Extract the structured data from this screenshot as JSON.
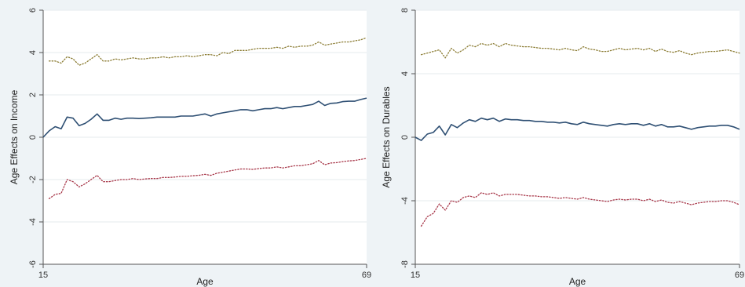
{
  "chart_data": [
    {
      "type": "line",
      "ylabel": "Age Effects on Income",
      "xlabel": "Age",
      "xlim": [
        15,
        69
      ],
      "ylim": [
        -6,
        6
      ],
      "x_ticks": [
        15,
        69
      ],
      "y_ticks": [
        -6,
        -4,
        -2,
        0,
        2,
        4,
        6
      ],
      "grid": true,
      "x": [
        15,
        16,
        17,
        18,
        19,
        20,
        21,
        22,
        23,
        24,
        25,
        26,
        27,
        28,
        29,
        30,
        31,
        32,
        33,
        34,
        35,
        36,
        37,
        38,
        39,
        40,
        41,
        42,
        43,
        44,
        45,
        46,
        47,
        48,
        49,
        50,
        51,
        52,
        53,
        54,
        55,
        56,
        57,
        58,
        59,
        60,
        61,
        62,
        63,
        64,
        65,
        66,
        67,
        68,
        69
      ],
      "series": [
        {
          "style": "dotted",
          "color": "#8c7d35",
          "values": [
            null,
            3.6,
            3.6,
            3.5,
            3.8,
            3.7,
            3.4,
            3.5,
            3.7,
            3.9,
            3.6,
            3.6,
            3.7,
            3.65,
            3.7,
            3.75,
            3.7,
            3.7,
            3.75,
            3.75,
            3.8,
            3.75,
            3.8,
            3.8,
            3.85,
            3.8,
            3.85,
            3.9,
            3.9,
            3.85,
            4.0,
            3.95,
            4.1,
            4.1,
            4.1,
            4.15,
            4.2,
            4.2,
            4.2,
            4.25,
            4.2,
            4.3,
            4.25,
            4.3,
            4.3,
            4.35,
            4.5,
            4.35,
            4.4,
            4.45,
            4.5,
            4.5,
            4.55,
            4.6,
            4.7
          ]
        },
        {
          "style": "solid",
          "color": "#2e4f73",
          "values": [
            0.0,
            0.3,
            0.5,
            0.4,
            0.95,
            0.9,
            0.55,
            0.65,
            0.85,
            1.1,
            0.8,
            0.8,
            0.9,
            0.85,
            0.9,
            0.9,
            0.88,
            0.9,
            0.92,
            0.95,
            0.95,
            0.95,
            0.95,
            1.0,
            1.0,
            1.0,
            1.05,
            1.1,
            1.0,
            1.1,
            1.15,
            1.2,
            1.25,
            1.3,
            1.3,
            1.25,
            1.3,
            1.35,
            1.35,
            1.4,
            1.35,
            1.4,
            1.45,
            1.45,
            1.5,
            1.55,
            1.7,
            1.5,
            1.6,
            1.62,
            1.68,
            1.7,
            1.7,
            1.78,
            1.85
          ]
        },
        {
          "style": "dotted",
          "color": "#a8384a",
          "values": [
            null,
            -2.9,
            -2.7,
            -2.65,
            -2.0,
            -2.1,
            -2.35,
            -2.2,
            -2.0,
            -1.8,
            -2.1,
            -2.1,
            -2.05,
            -2.0,
            -2.0,
            -1.95,
            -2.0,
            -1.97,
            -1.95,
            -1.95,
            -1.9,
            -1.9,
            -1.88,
            -1.85,
            -1.85,
            -1.82,
            -1.8,
            -1.75,
            -1.8,
            -1.7,
            -1.65,
            -1.6,
            -1.55,
            -1.5,
            -1.5,
            -1.52,
            -1.48,
            -1.45,
            -1.45,
            -1.4,
            -1.45,
            -1.4,
            -1.35,
            -1.35,
            -1.3,
            -1.25,
            -1.1,
            -1.3,
            -1.22,
            -1.2,
            -1.15,
            -1.12,
            -1.1,
            -1.05,
            -1.0
          ]
        }
      ]
    },
    {
      "type": "line",
      "ylabel": "Age Effects on Durables",
      "xlabel": "Age",
      "xlim": [
        15,
        69
      ],
      "ylim": [
        -8,
        8
      ],
      "x_ticks": [
        15,
        69
      ],
      "y_ticks": [
        -8,
        -4,
        0,
        4,
        8
      ],
      "grid": true,
      "x": [
        15,
        16,
        17,
        18,
        19,
        20,
        21,
        22,
        23,
        24,
        25,
        26,
        27,
        28,
        29,
        30,
        31,
        32,
        33,
        34,
        35,
        36,
        37,
        38,
        39,
        40,
        41,
        42,
        43,
        44,
        45,
        46,
        47,
        48,
        49,
        50,
        51,
        52,
        53,
        54,
        55,
        56,
        57,
        58,
        59,
        60,
        61,
        62,
        63,
        64,
        65,
        66,
        67,
        68,
        69
      ],
      "series": [
        {
          "style": "dotted",
          "color": "#8c7d35",
          "values": [
            null,
            5.2,
            5.3,
            5.4,
            5.5,
            5.0,
            5.6,
            5.3,
            5.5,
            5.8,
            5.7,
            5.9,
            5.8,
            5.9,
            5.7,
            5.9,
            5.8,
            5.75,
            5.7,
            5.7,
            5.65,
            5.6,
            5.6,
            5.55,
            5.5,
            5.6,
            5.5,
            5.45,
            5.7,
            5.55,
            5.5,
            5.4,
            5.4,
            5.5,
            5.6,
            5.5,
            5.55,
            5.6,
            5.5,
            5.6,
            5.4,
            5.55,
            5.4,
            5.35,
            5.45,
            5.3,
            5.2,
            5.3,
            5.35,
            5.4,
            5.4,
            5.45,
            5.5,
            5.4,
            5.3
          ]
        },
        {
          "style": "solid",
          "color": "#2e4f73",
          "values": [
            0.0,
            -0.2,
            0.2,
            0.3,
            0.7,
            0.15,
            0.8,
            0.6,
            0.9,
            1.1,
            1.0,
            1.2,
            1.1,
            1.2,
            1.0,
            1.15,
            1.1,
            1.1,
            1.05,
            1.05,
            1.0,
            1.0,
            0.95,
            0.95,
            0.9,
            0.95,
            0.85,
            0.8,
            0.95,
            0.85,
            0.8,
            0.75,
            0.7,
            0.8,
            0.85,
            0.8,
            0.85,
            0.85,
            0.75,
            0.85,
            0.7,
            0.8,
            0.65,
            0.65,
            0.7,
            0.6,
            0.5,
            0.6,
            0.65,
            0.7,
            0.7,
            0.75,
            0.75,
            0.65,
            0.5
          ]
        },
        {
          "style": "dotted",
          "color": "#a8384a",
          "values": [
            null,
            -5.6,
            -5.0,
            -4.8,
            -4.2,
            -4.6,
            -4.0,
            -4.1,
            -3.8,
            -3.7,
            -3.8,
            -3.5,
            -3.6,
            -3.5,
            -3.7,
            -3.6,
            -3.6,
            -3.6,
            -3.65,
            -3.7,
            -3.7,
            -3.75,
            -3.75,
            -3.8,
            -3.85,
            -3.8,
            -3.85,
            -3.9,
            -3.8,
            -3.9,
            -3.95,
            -4.0,
            -4.05,
            -3.95,
            -3.9,
            -3.95,
            -3.9,
            -3.9,
            -4.0,
            -3.9,
            -4.05,
            -3.95,
            -4.1,
            -4.15,
            -4.05,
            -4.15,
            -4.25,
            -4.15,
            -4.1,
            -4.05,
            -4.05,
            -4.0,
            -4.0,
            -4.1,
            -4.25
          ]
        }
      ]
    }
  ]
}
